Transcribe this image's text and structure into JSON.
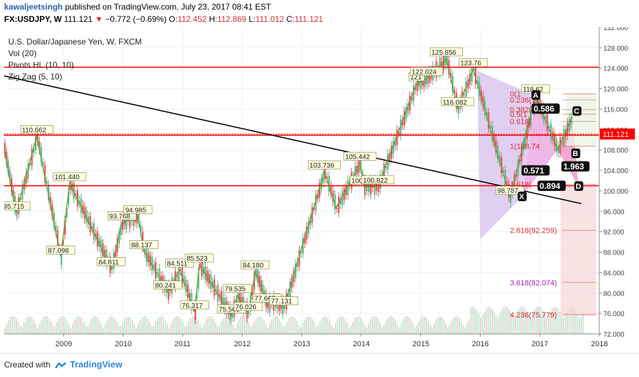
{
  "header": {
    "author": "kawaljeetsingh",
    "published": "published on TradingView.com, July 23, 2017 08:41 EST",
    "symbol": "FX:USDJPY, W",
    "last": "111.121",
    "change": "−0.772 (−0.69%)",
    "o_label": "O:",
    "o_value": "112.452",
    "h_label": "H:",
    "h_value": "112.869",
    "l_label": "L:",
    "l_value": "111.012",
    "c_label": "C:",
    "c_value": "111.121"
  },
  "legend": {
    "title": "U.S. Dollar/Japanese Yen, W, FXCM",
    "vol": "Vol (20)",
    "pivots": "Pivots HL (10, 10)",
    "zigzag": "Zig Zag (5, 10)"
  },
  "footer": {
    "created": "Created with",
    "brand": "TradingView"
  },
  "colors": {
    "up": "#53b987",
    "down": "#eb4d5c",
    "level": "#ff0000",
    "trend": "#000000",
    "zigzag": "#5aa52a",
    "pattern": "#9c27b0",
    "fib": "#d32f2f"
  },
  "chart_data": {
    "type": "candlestick",
    "symbol": "USDJPY",
    "interval": "W",
    "ylim": [
      72,
      132
    ],
    "xlim": [
      2008.0,
      2018.0
    ],
    "yticks": [
      "132.000",
      "128.000",
      "124.000",
      "120.000",
      "116.000",
      "112.000",
      "108.000",
      "104.000",
      "100.000",
      "96.000",
      "92.000",
      "88.000",
      "84.000",
      "80.000",
      "76.000",
      "72.000"
    ],
    "xticks": [
      {
        "x": 2009,
        "label": "2009"
      },
      {
        "x": 2010,
        "label": "2010"
      },
      {
        "x": 2011,
        "label": "2011"
      },
      {
        "x": 2012,
        "label": "2012"
      },
      {
        "x": 2013,
        "label": "2013"
      },
      {
        "x": 2014,
        "label": "2014"
      },
      {
        "x": 2015,
        "label": "2015"
      },
      {
        "x": 2016,
        "label": "2016"
      },
      {
        "x": 2017,
        "label": "2017"
      },
      {
        "x": 2018,
        "label": "2018"
      }
    ],
    "last_price": {
      "value": 111.121,
      "label": "111.121"
    },
    "zigzag": [
      {
        "x": 2008.0,
        "y": 108.3
      },
      {
        "x": 2008.2,
        "y": 95.715,
        "label": "95.715"
      },
      {
        "x": 2008.55,
        "y": 110.662,
        "label": "110.662"
      },
      {
        "x": 2008.95,
        "y": 87.098,
        "label": "87.098"
      },
      {
        "x": 2009.1,
        "y": 101.44,
        "label": "101.440"
      },
      {
        "x": 2009.8,
        "y": 84.811,
        "label": "84.811"
      },
      {
        "x": 2009.98,
        "y": 93.768,
        "label": "93.768"
      },
      {
        "x": 2010.25,
        "y": 94.985,
        "label": "94.985"
      },
      {
        "x": 2010.35,
        "y": 88.137,
        "label": "88.137"
      },
      {
        "x": 2010.75,
        "y": 80.241,
        "label": "80.241"
      },
      {
        "x": 2010.95,
        "y": 84.511,
        "label": "84.511"
      },
      {
        "x": 2011.2,
        "y": 76.317,
        "label": "76.317"
      },
      {
        "x": 2011.28,
        "y": 85.523,
        "label": "85.523"
      },
      {
        "x": 2011.82,
        "y": 75.563,
        "label": "75.563"
      },
      {
        "x": 2011.92,
        "y": 79.535,
        "label": "79.535"
      },
      {
        "x": 2012.1,
        "y": 76.026,
        "label": "76.026"
      },
      {
        "x": 2012.22,
        "y": 84.18,
        "label": "84.180"
      },
      {
        "x": 2012.42,
        "y": 77.667,
        "label": "77.667"
      },
      {
        "x": 2012.55,
        "y": 78.2
      },
      {
        "x": 2012.7,
        "y": 77.131,
        "label": "77.131"
      },
      {
        "x": 2013.38,
        "y": 103.736,
        "label": "103.736"
      },
      {
        "x": 2013.58,
        "y": 96.6
      },
      {
        "x": 2013.98,
        "y": 105.442,
        "label": "105.442"
      },
      {
        "x": 2014.05,
        "y": 100.76,
        "label": "100.76"
      },
      {
        "x": 2014.28,
        "y": 100.822,
        "label": "100.822"
      },
      {
        "x": 2014.93,
        "y": 121.0,
        "label": "121"
      },
      {
        "x": 2015.1,
        "y": 122.024,
        "label": "122.024"
      },
      {
        "x": 2015.43,
        "y": 125.856,
        "label": "125.856"
      },
      {
        "x": 2015.62,
        "y": 116.082,
        "label": "116.082"
      },
      {
        "x": 2015.88,
        "y": 123.76,
        "label": "123.76"
      },
      {
        "x": 2016.5,
        "y": 98.787,
        "label": "98.787"
      },
      {
        "x": 2016.93,
        "y": 118.62,
        "label": "118.62"
      },
      {
        "x": 2017.3,
        "y": 108.1
      },
      {
        "x": 2017.55,
        "y": 114.5
      }
    ],
    "fib_levels": [
      {
        "ratio": "0",
        "label": "0(1",
        "y": 119.0
      },
      {
        "ratio": "0.236",
        "label": "0.236(11",
        "y": 117.8
      },
      {
        "ratio": "0.382",
        "label": "0.382(1",
        "y": 115.9
      },
      {
        "ratio": "0.5",
        "label": "0.5(1",
        "y": 115.0
      },
      {
        "ratio": "0.618",
        "label": "0.618(",
        "y": 113.6
      },
      {
        "ratio": "1",
        "label": "1(108.74",
        "y": 108.74
      },
      {
        "ratio": "1.618",
        "label": "1.618(",
        "y": 101.3
      },
      {
        "ratio": "2.618",
        "label": "2.618(92.259)",
        "y": 92.259
      },
      {
        "ratio": "3.618",
        "label": "3.618(82.074)",
        "y": 82.074
      },
      {
        "ratio": "4.236",
        "label": "4.236(75.779)",
        "y": 75.779
      }
    ],
    "pattern_points": [
      {
        "name": "X",
        "x": 2016.7,
        "y": 98.787
      },
      {
        "name": "A",
        "x": 2016.93,
        "y": 118.62
      },
      {
        "name": "B",
        "x": 2017.6,
        "y": 107.2
      },
      {
        "name": "C",
        "x": 2017.62,
        "y": 115.5
      },
      {
        "name": "D",
        "x": 2017.65,
        "y": 100.8
      }
    ],
    "ratios": [
      {
        "label": "0.586",
        "x": 2017.1,
        "y": 115.9
      },
      {
        "label": "0.571",
        "x": 2016.93,
        "y": 103.8
      },
      {
        "label": "1.963",
        "x": 2017.6,
        "y": 104.6
      },
      {
        "label": "0.894",
        "x": 2017.2,
        "y": 100.8
      }
    ],
    "horizontal_levels": [
      124.2,
      110.9,
      101.0
    ]
  }
}
